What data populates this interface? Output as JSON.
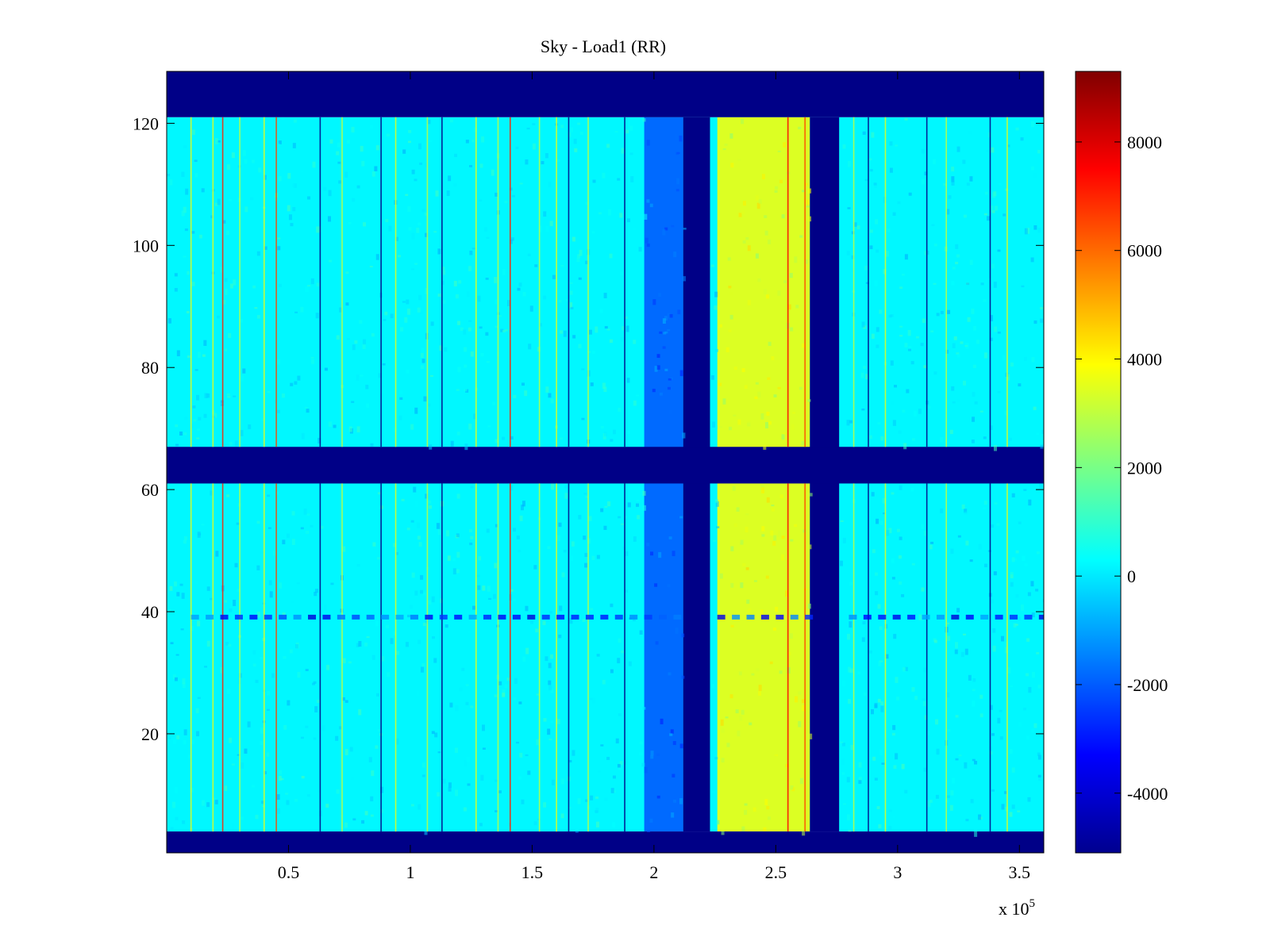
{
  "chart_data": {
    "type": "heatmap",
    "title": "Sky - Load1 (RR)",
    "xlabel": "",
    "ylabel": "",
    "x_exponent_label": "x 10",
    "x_exponent": "5",
    "xlim": [
      0,
      3.6
    ],
    "ylim": [
      0.5,
      128.5
    ],
    "x_ticks": [
      0.5,
      1,
      1.5,
      2,
      2.5,
      3,
      3.5
    ],
    "x_tick_labels": [
      "0.5",
      "1",
      "1.5",
      "2",
      "2.5",
      "3",
      "3.5"
    ],
    "y_ticks": [
      20,
      40,
      60,
      80,
      100,
      120
    ],
    "y_tick_labels": [
      "20",
      "40",
      "60",
      "80",
      "100",
      "120"
    ],
    "colorbar": {
      "colormap": "jet",
      "range": [
        -5100,
        9300
      ],
      "ticks": [
        -4000,
        -2000,
        0,
        2000,
        4000,
        6000,
        8000
      ],
      "tick_labels": [
        "-4000",
        "-2000",
        "0",
        "2000",
        "4000",
        "6000",
        "8000"
      ]
    },
    "regions": [
      {
        "name": "background",
        "x": [
          0,
          3.6
        ],
        "y": [
          4,
          121
        ],
        "value": 200
      },
      {
        "name": "low band",
        "x": [
          1.96,
          2.12
        ],
        "y": [
          4,
          121
        ],
        "value": -1800
      },
      {
        "name": "masked column 1",
        "x": [
          2.12,
          2.23
        ],
        "y": [
          4,
          121
        ],
        "value": -5000
      },
      {
        "name": "high band",
        "x": [
          2.26,
          2.64
        ],
        "y": [
          4,
          121
        ],
        "value": 3400
      },
      {
        "name": "masked column 2",
        "x": [
          2.64,
          2.76
        ],
        "y": [
          4,
          121
        ],
        "value": -5000
      },
      {
        "name": "masked row top",
        "x": [
          0,
          3.6
        ],
        "y": [
          121,
          128.5
        ],
        "value": -5000
      },
      {
        "name": "masked row middle",
        "x": [
          0,
          3.6
        ],
        "y": [
          61,
          67
        ],
        "value": -5000
      },
      {
        "name": "masked row bottom",
        "x": [
          0,
          3.6
        ],
        "y": [
          0.5,
          4
        ],
        "value": -5000
      }
    ],
    "line_features": [
      {
        "x": 0.1,
        "value": 3500
      },
      {
        "x": 0.19,
        "value": 3500
      },
      {
        "x": 0.23,
        "value": 7000
      },
      {
        "x": 0.3,
        "value": 3000
      },
      {
        "x": 0.4,
        "value": 3500
      },
      {
        "x": 0.45,
        "value": 6500
      },
      {
        "x": 0.63,
        "value": -5000
      },
      {
        "x": 0.72,
        "value": 3000
      },
      {
        "x": 0.88,
        "value": -5000
      },
      {
        "x": 0.94,
        "value": 3500
      },
      {
        "x": 1.07,
        "value": 3000
      },
      {
        "x": 1.13,
        "value": -5000
      },
      {
        "x": 1.27,
        "value": 3500
      },
      {
        "x": 1.36,
        "value": 3000
      },
      {
        "x": 1.41,
        "value": 7000
      },
      {
        "x": 1.53,
        "value": 3000
      },
      {
        "x": 1.6,
        "value": 3500
      },
      {
        "x": 1.65,
        "value": -5000
      },
      {
        "x": 1.73,
        "value": 3000
      },
      {
        "x": 1.88,
        "value": -5000
      },
      {
        "x": 2.55,
        "value": 7500
      },
      {
        "x": 2.62,
        "value": 6500
      },
      {
        "x": 2.82,
        "value": 3000
      },
      {
        "x": 2.88,
        "value": -5000
      },
      {
        "x": 2.95,
        "value": 3500
      },
      {
        "x": 3.12,
        "value": -5000
      },
      {
        "x": 3.2,
        "value": 3000
      },
      {
        "x": 3.38,
        "value": -5000
      },
      {
        "x": 3.45,
        "value": 3500
      }
    ],
    "row_features": [
      {
        "y": 39,
        "value": -2500
      }
    ]
  }
}
